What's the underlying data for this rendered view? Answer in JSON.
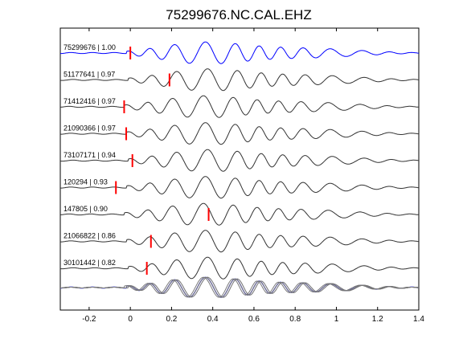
{
  "chart_data": {
    "type": "line",
    "title": "75299676.NC.CAL.EHZ",
    "xlabel": "",
    "ylabel": "",
    "xlim": [
      -0.34,
      1.4
    ],
    "x_ticks": [
      -0.2,
      0,
      0.2,
      0.4,
      0.6,
      0.8,
      1,
      1.2,
      1.4
    ],
    "x_tick_labels": [
      "-0.2",
      "0",
      "0.2",
      "0.4",
      "0.6",
      "0.8",
      "1",
      "1.2",
      "1.4"
    ],
    "grid": false,
    "colors": {
      "reference": "#0000ff",
      "trace": "#333333",
      "pick": "#ff0000",
      "stack": "#777777"
    },
    "series": [
      {
        "name": "75299676 | 1.00",
        "pick_time": 0.0,
        "shift": 0.0,
        "color": "#0000ff"
      },
      {
        "name": "51177641 | 0.97",
        "pick_time": 0.19,
        "shift": 0.01,
        "color": "#333333"
      },
      {
        "name": "71412416 | 0.97",
        "pick_time": -0.03,
        "shift": -0.01,
        "color": "#333333"
      },
      {
        "name": "21090366 | 0.97",
        "pick_time": -0.02,
        "shift": 0.0,
        "color": "#333333"
      },
      {
        "name": "73107171 | 0.94",
        "pick_time": 0.01,
        "shift": 0.01,
        "color": "#333333"
      },
      {
        "name": "120294 | 0.93",
        "pick_time": -0.07,
        "shift": 0.0,
        "color": "#333333"
      },
      {
        "name": "147805 | 0.90",
        "pick_time": 0.38,
        "shift": -0.01,
        "color": "#333333"
      },
      {
        "name": "21066822 | 0.86",
        "pick_time": 0.1,
        "shift": 0.0,
        "color": "#333333"
      },
      {
        "name": "30101442 | 0.82",
        "pick_time": 0.08,
        "shift": 0.01,
        "color": "#333333"
      }
    ]
  }
}
